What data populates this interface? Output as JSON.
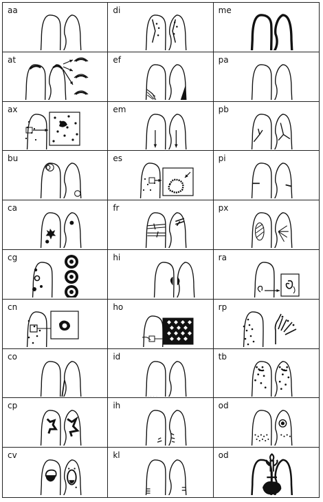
{
  "cells": [
    {
      "code": "aa",
      "icon": "lungs-normal-icon"
    },
    {
      "code": "di",
      "icon": "lungs-diaphragm-icon"
    },
    {
      "code": "me",
      "icon": "lungs-mesothelioma-icon"
    },
    {
      "code": "at",
      "icon": "lungs-apical-thickening-icon"
    },
    {
      "code": "ef",
      "icon": "lungs-effusion-icon"
    },
    {
      "code": "pa",
      "icon": "lungs-plate-atelectasis-icon"
    },
    {
      "code": "ax",
      "icon": "lung-coalescence-icon"
    },
    {
      "code": "em",
      "icon": "lungs-emphysema-icon"
    },
    {
      "code": "pb",
      "icon": "lungs-parenchymal-bands-icon"
    },
    {
      "code": "bu",
      "icon": "lungs-bullae-icon"
    },
    {
      "code": "es",
      "icon": "lung-eggshell-icon"
    },
    {
      "code": "pi",
      "icon": "lungs-pleural-interlobar-icon"
    },
    {
      "code": "ca",
      "icon": "lungs-cancer-icon"
    },
    {
      "code": "fr",
      "icon": "lungs-rib-fracture-icon"
    },
    {
      "code": "px",
      "icon": "lungs-pneumothorax-icon"
    },
    {
      "code": "cg",
      "icon": "lung-calcified-granuloma-icon"
    },
    {
      "code": "hi",
      "icon": "lungs-hilar-enlargement-icon"
    },
    {
      "code": "ra",
      "icon": "lung-rounded-atelectasis-icon"
    },
    {
      "code": "cn",
      "icon": "lung-calcification-icon"
    },
    {
      "code": "ho",
      "icon": "lung-honeycomb-icon"
    },
    {
      "code": "rp",
      "icon": "lung-rheumatoid-icon"
    },
    {
      "code": "co",
      "icon": "lungs-cardiac-contour-icon"
    },
    {
      "code": "id",
      "icon": "lungs-ill-defined-diaphragm-icon"
    },
    {
      "code": "tb",
      "icon": "lungs-tuberculosis-icon"
    },
    {
      "code": "cp",
      "icon": "lungs-cor-pulmonale-icon"
    },
    {
      "code": "ih",
      "icon": "lungs-ill-defined-heart-icon"
    },
    {
      "code": "od",
      "icon": "lungs-other-disease-icon"
    },
    {
      "code": "cv",
      "icon": "lungs-cavity-icon"
    },
    {
      "code": "kl",
      "icon": "lungs-kerley-lines-icon"
    },
    {
      "code": "od",
      "icon": "heart-lungs-icon"
    }
  ]
}
